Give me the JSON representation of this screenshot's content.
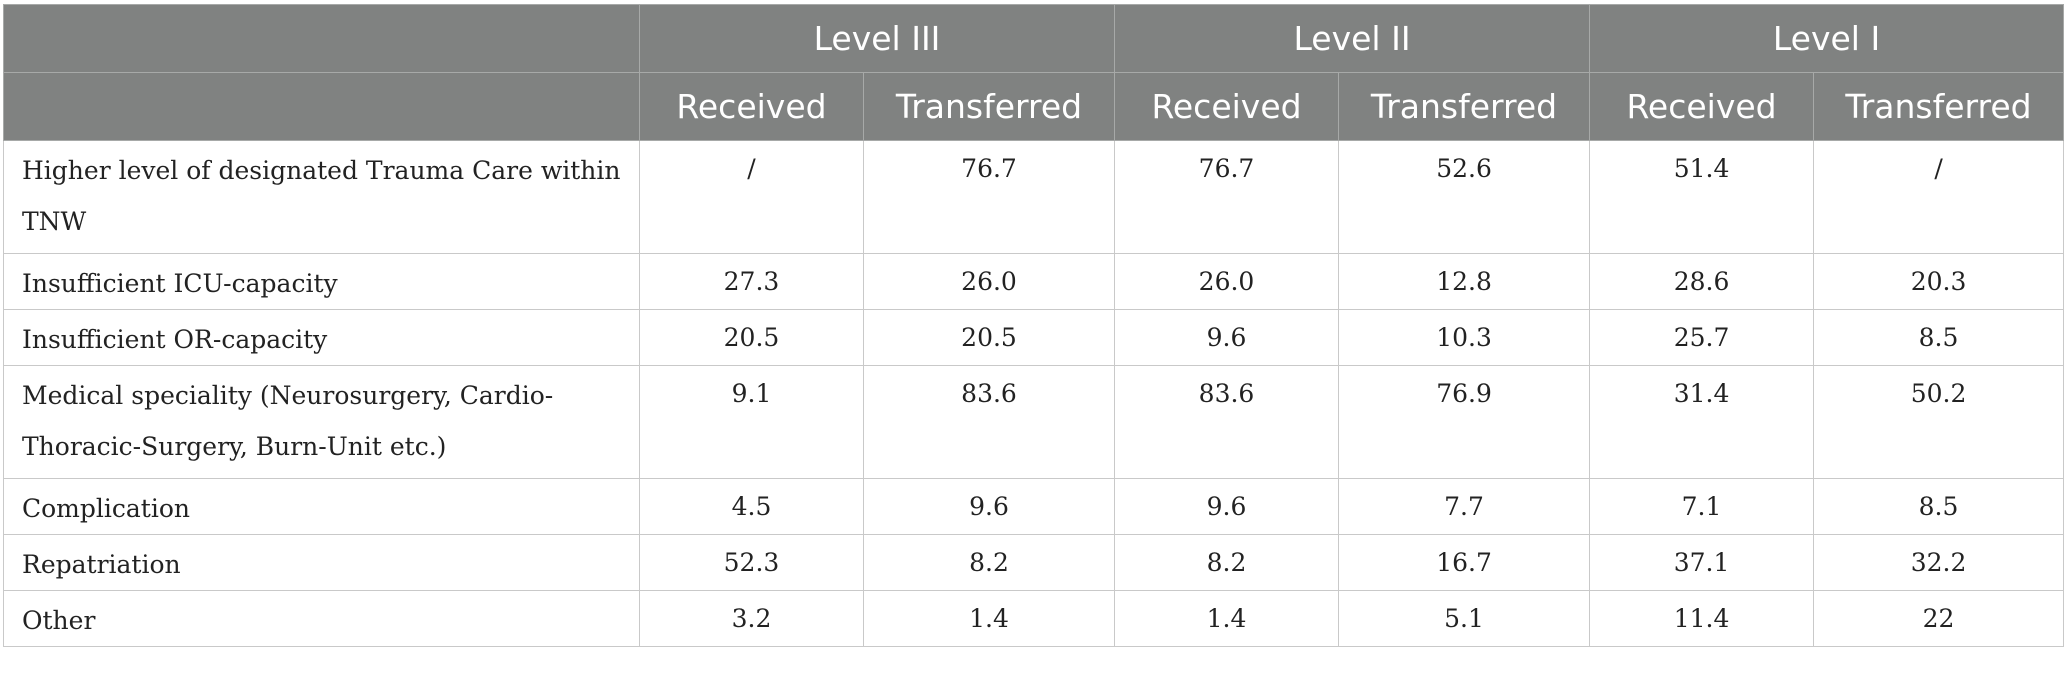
{
  "table": {
    "groups": [
      "Level III",
      "Level II",
      "Level I"
    ],
    "subheaders": [
      "Received",
      "Transferred",
      "Received",
      "Transferred",
      "Received",
      "Transferred"
    ],
    "rows": [
      {
        "label": "Higher level of designated Trauma Care within TNW",
        "values": [
          "/",
          "76.7",
          "76.7",
          "52.6",
          "51.4",
          "/"
        ]
      },
      {
        "label": "Insufficient ICU-capacity",
        "values": [
          "27.3",
          "26.0",
          "26.0",
          "12.8",
          "28.6",
          "20.3"
        ]
      },
      {
        "label": "Insufficient OR-capacity",
        "values": [
          "20.5",
          "20.5",
          "9.6",
          "10.3",
          "25.7",
          "8.5"
        ]
      },
      {
        "label": "Medical speciality (Neurosurgery, Cardio-Thoracic-Surgery, Burn-Unit etc.)",
        "values": [
          "9.1",
          "83.6",
          "83.6",
          "76.9",
          "31.4",
          "50.2"
        ]
      },
      {
        "label": "Complication",
        "values": [
          "4.5",
          "9.6",
          "9.6",
          "7.7",
          "7.1",
          "8.5"
        ]
      },
      {
        "label": "Repatriation",
        "values": [
          "52.3",
          "8.2",
          "8.2",
          "16.7",
          "37.1",
          "32.2"
        ]
      },
      {
        "label": "Other",
        "values": [
          "3.2",
          "1.4",
          "1.4",
          "5.1",
          "11.4",
          "22"
        ]
      }
    ]
  }
}
